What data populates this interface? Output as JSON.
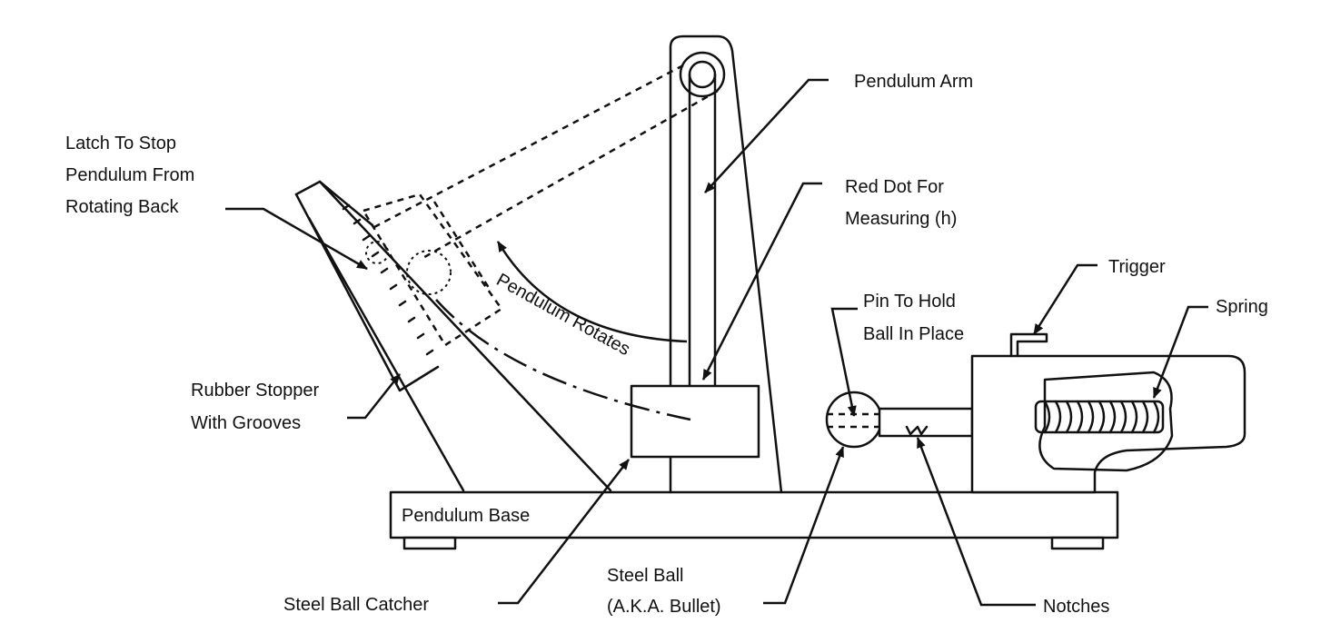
{
  "labels": {
    "latch": [
      "Latch To Stop",
      "Pendulum From",
      "Rotating Back"
    ],
    "pendulum_arm": "Pendulum Arm",
    "red_dot": [
      "Red Dot For",
      "Measuring (h)"
    ],
    "pendulum_rotates": "Pendulum Rotates",
    "trigger": "Trigger",
    "spring": "Spring",
    "pin": [
      "Pin To Hold",
      "Ball In Place"
    ],
    "rubber_stopper": [
      "Rubber Stopper",
      "With Grooves"
    ],
    "pendulum_base": "Pendulum Base",
    "steel_ball_catcher": "Steel Ball Catcher",
    "steel_ball": [
      "Steel Ball",
      "(A.K.A. Bullet)"
    ],
    "notches": "Notches"
  }
}
